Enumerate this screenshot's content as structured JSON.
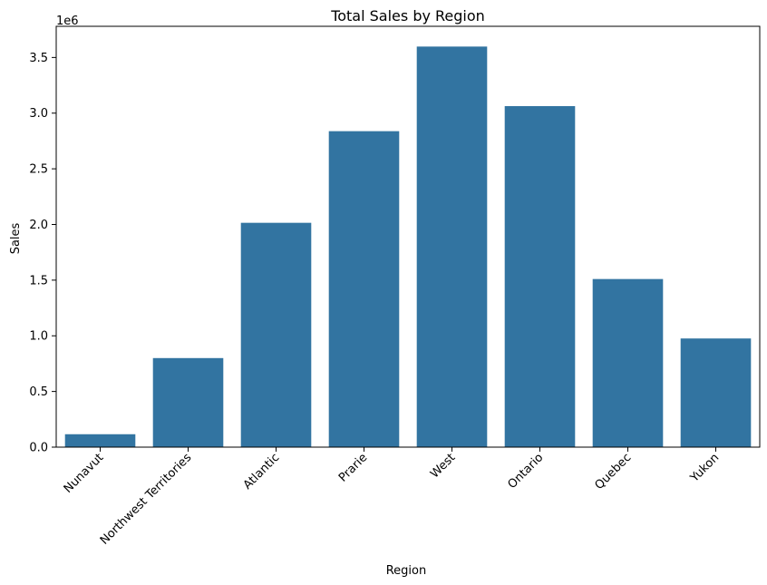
{
  "chart_data": {
    "type": "bar",
    "title": "Total Sales by Region",
    "xlabel": "Region",
    "ylabel": "Sales",
    "y_offset_label": "1e6",
    "categories": [
      "Nunavut",
      "Northwest Territories",
      "Atlantic",
      "Prarie",
      "West",
      "Ontario",
      "Quebec",
      "Yukon"
    ],
    "values": [
      116000,
      800000,
      2015000,
      2838000,
      3598000,
      3063000,
      1510000,
      976000
    ],
    "ylim": [
      0,
      3780000
    ],
    "yticks": [
      0,
      500000,
      1000000,
      1500000,
      2000000,
      2500000,
      3000000,
      3500000
    ],
    "ytick_labels": [
      "0.0",
      "0.5",
      "1.0",
      "1.5",
      "2.0",
      "2.5",
      "3.0",
      "3.5"
    ],
    "bar_color": "#3274a1",
    "grid": false,
    "legend": "none"
  }
}
